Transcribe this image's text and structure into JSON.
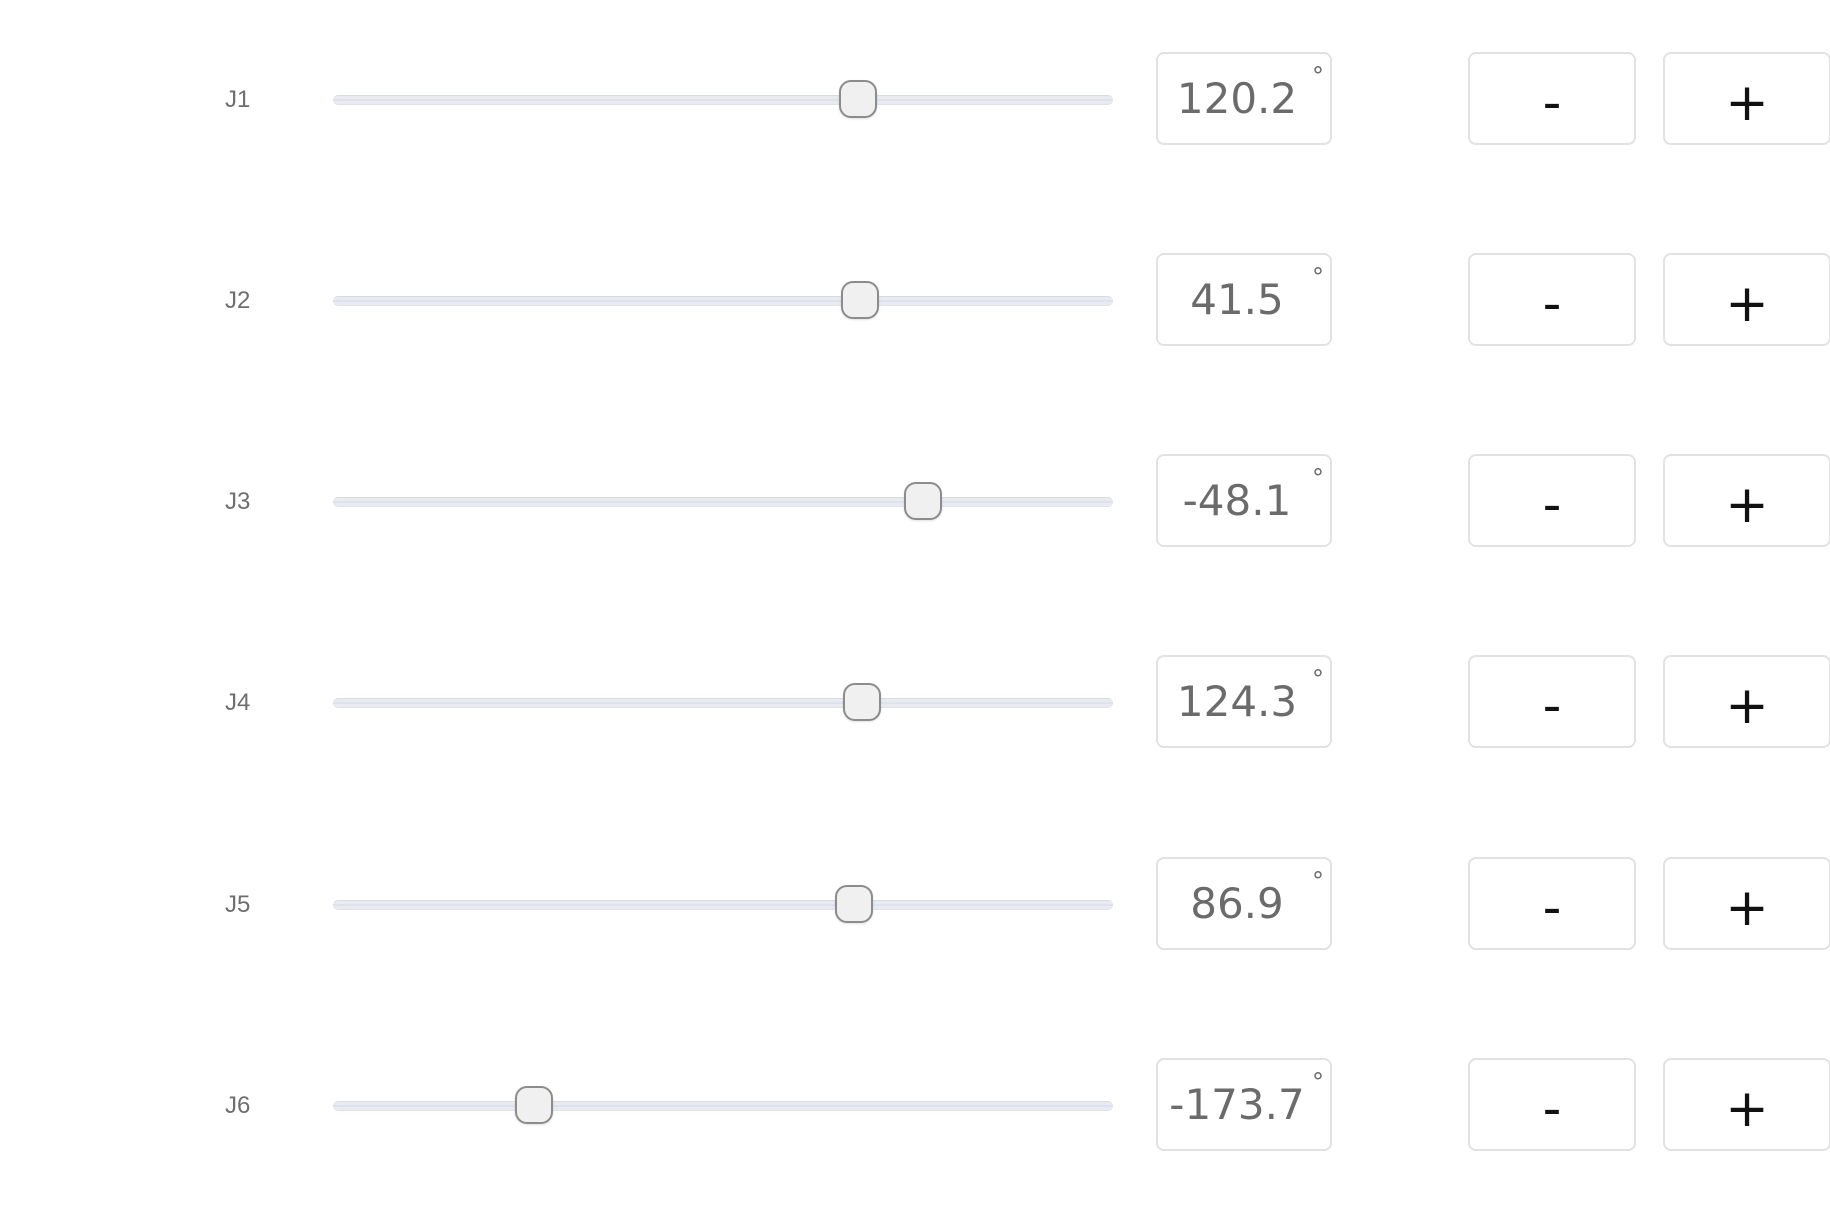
{
  "unit_symbol": "°",
  "controls": {
    "minus_label": "-",
    "plus_label": "+"
  },
  "joints": [
    {
      "label": "J1",
      "value": "120.2",
      "slider_fraction": 0.67
    },
    {
      "label": "J2",
      "value": "41.5",
      "slider_fraction": 0.673
    },
    {
      "label": "J3",
      "value": "-48.1",
      "slider_fraction": 0.753
    },
    {
      "label": "J4",
      "value": "124.3",
      "slider_fraction": 0.675
    },
    {
      "label": "J5",
      "value": "86.9",
      "slider_fraction": 0.666
    },
    {
      "label": "J6",
      "value": "-173.7",
      "slider_fraction": 0.258
    }
  ],
  "colors": {
    "text_label": "#6e6e6e",
    "text_value": "#6b6b6b",
    "border": "#e2e2e2",
    "thumb_fill": "#f0f0f0",
    "thumb_border": "#8c8c8c",
    "track": "#e9ebf0"
  }
}
